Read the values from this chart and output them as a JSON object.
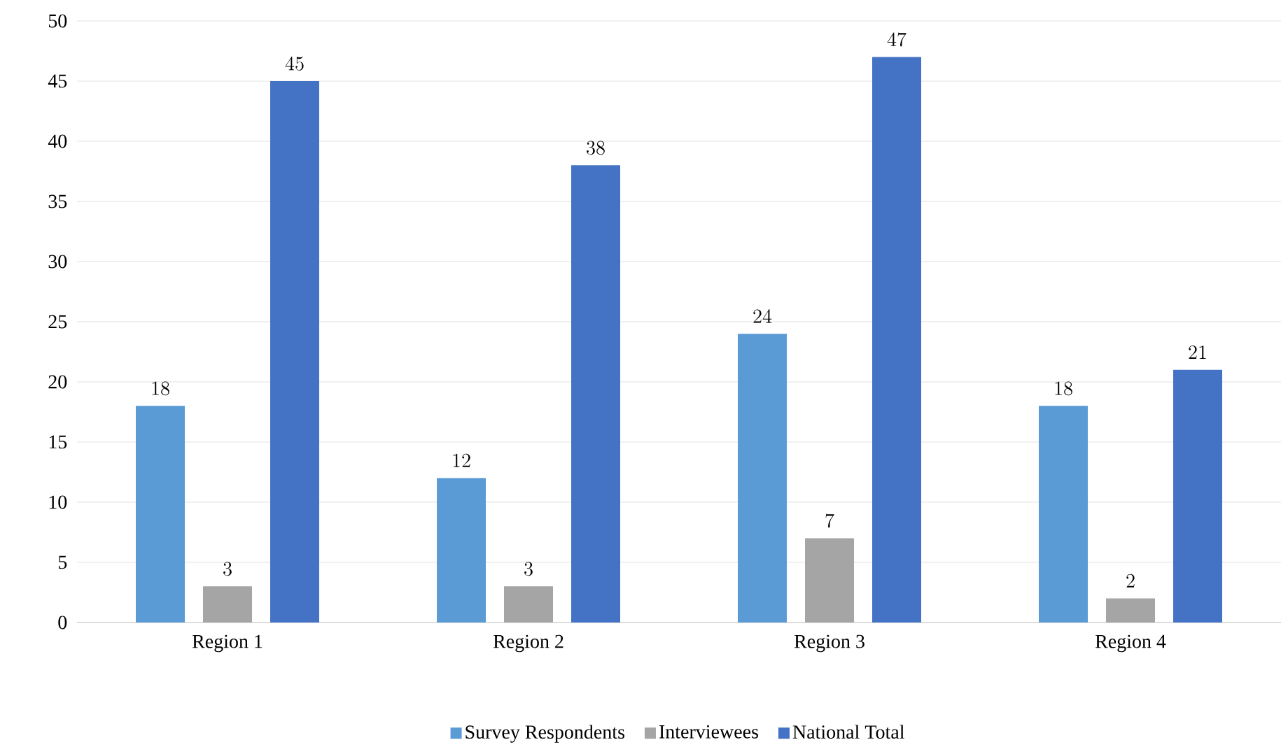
{
  "chart_data": {
    "type": "bar",
    "categories": [
      "Region 1",
      "Region 2",
      "Region 3",
      "Region 4"
    ],
    "series": [
      {
        "name": "Survey Respondents",
        "color": "#5b9bd5",
        "values": [
          18,
          12,
          24,
          18
        ]
      },
      {
        "name": "Interviewees",
        "color": "#a5a5a5",
        "values": [
          3,
          3,
          7,
          2
        ]
      },
      {
        "name": "National Total",
        "color": "#4472c4",
        "values": [
          45,
          38,
          47,
          21
        ]
      }
    ],
    "ylim": [
      0,
      50
    ],
    "yticks": [
      0,
      5,
      10,
      15,
      20,
      25,
      30,
      35,
      40,
      45,
      50
    ],
    "grid": "y",
    "legend": "bottom",
    "data_labels": true
  }
}
